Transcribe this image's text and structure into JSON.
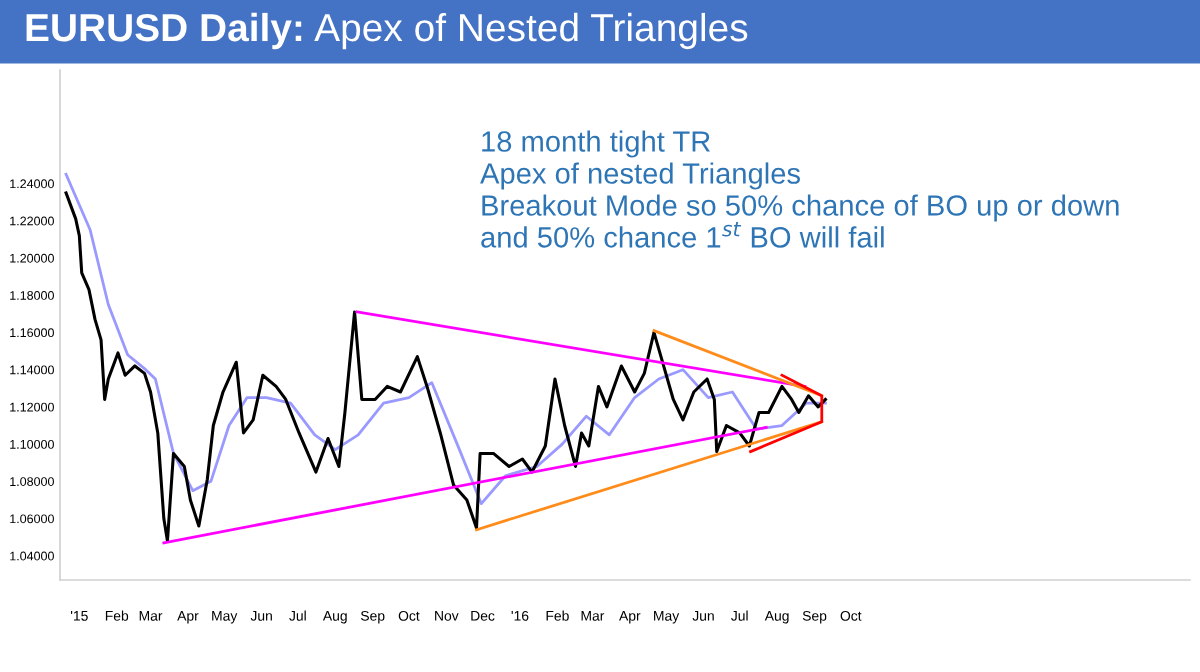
{
  "chart_data": {
    "type": "line",
    "title": "EURUSD Daily: Apex of Nested Triangles",
    "annotations": [
      "18 month tight TR",
      "Apex of nested Triangles",
      "Breakout Mode so 50% chance of BO up or down",
      "and 50% chance 1$^{st}$ BO will fail"
    ],
    "xlim": [
      "2014-12-16",
      "2017-07-09"
    ],
    "ylim": [
      1.027,
      1.301
    ],
    "xticks": [
      {
        "value": "2015-01-01",
        "label": "'15"
      },
      {
        "value": "2015-02-01",
        "label": "Feb"
      },
      {
        "value": "2015-03-01",
        "label": "Mar"
      },
      {
        "value": "2015-04-01",
        "label": "Apr"
      },
      {
        "value": "2015-05-01",
        "label": "May"
      },
      {
        "value": "2015-06-01",
        "label": "Jun"
      },
      {
        "value": "2015-07-01",
        "label": "Jul"
      },
      {
        "value": "2015-08-01",
        "label": "Aug"
      },
      {
        "value": "2015-09-01",
        "label": "Sep"
      },
      {
        "value": "2015-10-01",
        "label": "Oct"
      },
      {
        "value": "2015-11-01",
        "label": "Nov"
      },
      {
        "value": "2015-12-01",
        "label": "Dec"
      },
      {
        "value": "2016-01-01",
        "label": "'16"
      },
      {
        "value": "2016-02-01",
        "label": "Feb"
      },
      {
        "value": "2016-03-01",
        "label": "Mar"
      },
      {
        "value": "2016-04-01",
        "label": "Apr"
      },
      {
        "value": "2016-05-01",
        "label": "May"
      },
      {
        "value": "2016-06-01",
        "label": "Jun"
      },
      {
        "value": "2016-07-01",
        "label": "Jul"
      },
      {
        "value": "2016-08-01",
        "label": "Aug"
      },
      {
        "value": "2016-09-01",
        "label": "Sep"
      },
      {
        "value": "2016-10-01",
        "label": "Oct"
      }
    ],
    "yticks": [
      {
        "value": 1.04,
        "label": "1.04000"
      },
      {
        "value": 1.06,
        "label": "1.06000"
      },
      {
        "value": 1.08,
        "label": "1.08000"
      },
      {
        "value": 1.1,
        "label": "1.10000"
      },
      {
        "value": 1.12,
        "label": "1.12000"
      },
      {
        "value": 1.14,
        "label": "1.14000"
      },
      {
        "value": 1.16,
        "label": "1.16000"
      },
      {
        "value": 1.18,
        "label": "1.18000"
      },
      {
        "value": 1.2,
        "label": "1.20000"
      },
      {
        "value": 1.22,
        "label": "1.22000"
      },
      {
        "value": 1.24,
        "label": "1.24000"
      }
    ],
    "grid": false,
    "legend": false,
    "series": [
      {
        "color": "#9999ff",
        "x": [
          "2014-12-21",
          "2015-01-10",
          "2015-01-25",
          "2015-02-10",
          "2015-02-25",
          "2015-03-05",
          "2015-03-20",
          "2015-04-05",
          "2015-04-20",
          "2015-05-05",
          "2015-05-20",
          "2015-06-05",
          "2015-06-25",
          "2015-07-15",
          "2015-08-01",
          "2015-08-20",
          "2015-09-10",
          "2015-10-01",
          "2015-10-20",
          "2015-11-10",
          "2015-11-30",
          "2015-12-20",
          "2016-01-15",
          "2016-02-05",
          "2016-02-25",
          "2016-03-15",
          "2016-04-05",
          "2016-04-25",
          "2016-05-15",
          "2016-06-05",
          "2016-06-25",
          "2016-07-15",
          "2016-08-05",
          "2016-08-25",
          "2016-09-10"
        ],
        "values": [
          1.245,
          1.215,
          1.175,
          1.148,
          1.14,
          1.135,
          1.095,
          1.075,
          1.08,
          1.11,
          1.125,
          1.125,
          1.122,
          1.105,
          1.097,
          1.105,
          1.122,
          1.125,
          1.133,
          1.1,
          1.068,
          1.083,
          1.088,
          1.1,
          1.115,
          1.105,
          1.125,
          1.135,
          1.14,
          1.125,
          1.128,
          1.108,
          1.11,
          1.122,
          1.122
        ]
      },
      {
        "color": "#000000",
        "x": [
          "2014-12-21",
          "2014-12-29",
          "2015-01-01",
          "2015-01-03",
          "2015-01-09",
          "2015-01-14",
          "2015-01-19",
          "2015-01-22",
          "2015-01-25",
          "2015-02-02",
          "2015-02-08",
          "2015-02-16",
          "2015-02-24",
          "2015-03-01",
          "2015-03-07",
          "2015-03-12",
          "2015-03-15",
          "2015-03-20",
          "2015-03-29",
          "2015-04-03",
          "2015-04-10",
          "2015-04-17",
          "2015-04-22",
          "2015-04-30",
          "2015-05-11",
          "2015-05-17",
          "2015-05-25",
          "2015-06-02",
          "2015-06-13",
          "2015-06-21",
          "2015-07-02",
          "2015-07-16",
          "2015-07-26",
          "2015-08-04",
          "2015-08-09",
          "2015-08-17",
          "2015-08-23",
          "2015-09-03",
          "2015-09-13",
          "2015-09-24",
          "2015-10-08",
          "2015-10-16",
          "2015-10-27",
          "2015-11-07",
          "2015-11-18",
          "2015-11-26",
          "2015-11-29",
          "2015-12-10",
          "2015-12-23",
          "2016-01-03",
          "2016-01-11",
          "2016-01-22",
          "2016-01-30",
          "2016-02-07",
          "2016-02-16",
          "2016-02-21",
          "2016-02-27",
          "2016-03-06",
          "2016-03-13",
          "2016-03-25",
          "2016-04-05",
          "2016-04-13",
          "2016-04-21",
          "2016-04-29",
          "2016-05-07",
          "2016-05-15",
          "2016-05-24",
          "2016-06-04",
          "2016-06-10",
          "2016-06-12",
          "2016-06-20",
          "2016-07-01",
          "2016-07-09",
          "2016-07-17",
          "2016-07-25",
          "2016-08-05",
          "2016-08-13",
          "2016-08-19",
          "2016-08-27",
          "2016-09-04",
          "2016-09-10"
        ],
        "values": [
          1.235,
          1.221,
          1.212,
          1.192,
          1.183,
          1.167,
          1.156,
          1.124,
          1.135,
          1.149,
          1.137,
          1.142,
          1.138,
          1.128,
          1.106,
          1.06,
          1.048,
          1.095,
          1.088,
          1.07,
          1.056,
          1.081,
          1.11,
          1.128,
          1.144,
          1.106,
          1.113,
          1.137,
          1.131,
          1.124,
          1.106,
          1.085,
          1.103,
          1.088,
          1.117,
          1.171,
          1.124,
          1.124,
          1.131,
          1.128,
          1.147,
          1.131,
          1.106,
          1.078,
          1.07,
          1.055,
          1.095,
          1.095,
          1.088,
          1.092,
          1.085,
          1.099,
          1.135,
          1.11,
          1.088,
          1.106,
          1.099,
          1.131,
          1.12,
          1.142,
          1.128,
          1.138,
          1.16,
          1.142,
          1.124,
          1.113,
          1.128,
          1.135,
          1.124,
          1.096,
          1.11,
          1.106,
          1.099,
          1.117,
          1.117,
          1.131,
          1.124,
          1.117,
          1.126,
          1.12,
          1.124
        ]
      },
      {
        "color": "#ff00ff",
        "x": [
          "2015-08-19",
          "2016-08-24"
        ],
        "values": [
          1.171,
          1.131
        ]
      },
      {
        "color": "#ff00ff",
        "x": [
          "2015-03-12",
          "2016-07-23"
        ],
        "values": [
          1.047,
          1.109
        ]
      },
      {
        "color": "#ff8c1a",
        "x": [
          "2015-11-26",
          "2016-09-07"
        ],
        "values": [
          1.054,
          1.112
        ]
      },
      {
        "color": "#ff8c1a",
        "x": [
          "2016-04-21",
          "2016-09-07"
        ],
        "values": [
          1.161,
          1.126
        ]
      },
      {
        "color": "#ff0000",
        "x": [
          "2016-08-05",
          "2016-09-07",
          "2016-09-07",
          "2016-07-10"
        ],
        "values": [
          1.137,
          1.126,
          1.112,
          1.096
        ]
      }
    ]
  }
}
